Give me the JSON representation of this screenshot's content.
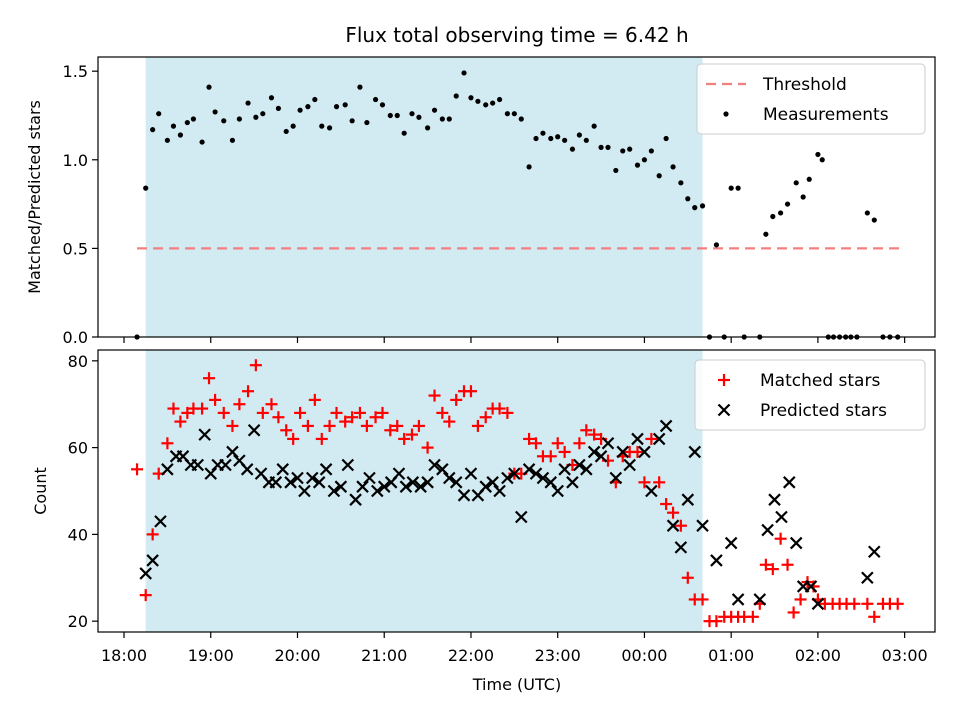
{
  "title": "Flux total observing time = 6.42 h",
  "xlabel": "Time (UTC)",
  "x_ticks": [
    "18:00",
    "19:00",
    "20:00",
    "21:00",
    "22:00",
    "23:00",
    "00:00",
    "01:00",
    "02:00",
    "03:00"
  ],
  "chart_data": [
    {
      "type": "scatter",
      "ylabel": "Matched/Predicted stars",
      "xlim": [
        17.7,
        27.35
      ],
      "ylim": [
        0,
        1.58
      ],
      "y_ticks": [
        "0.0",
        "0.5",
        "1.0",
        "1.5"
      ],
      "shaded_region": {
        "x_start": 18.25,
        "x_end": 24.67,
        "color": "#add8e6"
      },
      "threshold": {
        "name": "Threshold",
        "value": 0.5,
        "x_start": 18.15,
        "x_end": 27.0,
        "color": "#f08080"
      },
      "legend": [
        "Threshold",
        "Measurements"
      ],
      "legend_position": "upper right",
      "series": [
        {
          "name": "Measurements",
          "color": "#000000",
          "x": [
            18.15,
            18.25,
            18.33,
            18.4,
            18.5,
            18.57,
            18.65,
            18.73,
            18.8,
            18.9,
            18.98,
            19.05,
            19.15,
            19.25,
            19.33,
            19.43,
            19.52,
            19.6,
            19.7,
            19.78,
            19.87,
            19.95,
            20.03,
            20.12,
            20.2,
            20.28,
            20.37,
            20.45,
            20.55,
            20.63,
            20.72,
            20.8,
            20.9,
            20.98,
            21.07,
            21.15,
            21.23,
            21.32,
            21.4,
            21.5,
            21.58,
            21.67,
            21.75,
            21.83,
            21.92,
            22.0,
            22.08,
            22.17,
            22.25,
            22.33,
            22.42,
            22.5,
            22.58,
            22.67,
            22.75,
            22.83,
            22.92,
            23.0,
            23.08,
            23.17,
            23.25,
            23.33,
            23.42,
            23.5,
            23.58,
            23.67,
            23.75,
            23.83,
            23.92,
            24.0,
            24.08,
            24.17,
            24.25,
            24.33,
            24.42,
            24.5,
            24.58,
            24.67,
            24.75,
            24.83,
            24.92,
            25.0,
            25.08,
            25.15,
            25.33,
            25.4,
            25.48,
            25.57,
            25.65,
            25.75,
            25.83,
            25.9,
            26.0,
            26.05,
            26.12,
            26.18,
            26.25,
            26.32,
            26.38,
            26.45,
            26.57,
            26.65,
            26.75,
            26.83,
            26.92
          ],
          "y": [
            0.0,
            0.84,
            1.17,
            1.26,
            1.11,
            1.19,
            1.14,
            1.21,
            1.23,
            1.1,
            1.41,
            1.27,
            1.22,
            1.11,
            1.23,
            1.32,
            1.24,
            1.26,
            1.35,
            1.29,
            1.16,
            1.19,
            1.28,
            1.3,
            1.34,
            1.19,
            1.18,
            1.3,
            1.31,
            1.22,
            1.41,
            1.21,
            1.34,
            1.31,
            1.25,
            1.25,
            1.15,
            1.26,
            1.24,
            1.18,
            1.28,
            1.23,
            1.23,
            1.36,
            1.49,
            1.35,
            1.33,
            1.31,
            1.32,
            1.34,
            1.26,
            1.26,
            1.23,
            0.96,
            1.12,
            1.15,
            1.12,
            1.13,
            1.11,
            1.06,
            1.14,
            1.11,
            1.19,
            1.07,
            1.07,
            0.94,
            1.05,
            1.06,
            0.97,
            1.0,
            1.05,
            0.91,
            1.12,
            0.96,
            0.87,
            0.78,
            0.73,
            0.74,
            0.0,
            0.52,
            0.0,
            0.84,
            0.84,
            0.0,
            0.0,
            0.58,
            0.68,
            0.7,
            0.75,
            0.87,
            0.79,
            0.89,
            1.03,
            1.0,
            0.0,
            0.0,
            0.0,
            0.0,
            0.0,
            0.0,
            0.7,
            0.66,
            0.0,
            0.0,
            0.0
          ]
        }
      ]
    },
    {
      "type": "scatter",
      "ylabel": "Count",
      "xlim": [
        17.7,
        27.35
      ],
      "ylim": [
        17.5,
        82.5
      ],
      "y_ticks": [
        "20",
        "40",
        "60",
        "80"
      ],
      "shaded_region": {
        "x_start": 18.25,
        "x_end": 24.67,
        "color": "#add8e6"
      },
      "legend": [
        "Matched stars",
        "Predicted stars"
      ],
      "legend_position": "upper right",
      "series": [
        {
          "name": "Matched stars",
          "marker": "plus",
          "color": "#ff0000",
          "x": [
            18.15,
            18.25,
            18.33,
            18.4,
            18.5,
            18.57,
            18.65,
            18.73,
            18.8,
            18.9,
            18.98,
            19.05,
            19.15,
            19.25,
            19.33,
            19.43,
            19.52,
            19.6,
            19.7,
            19.78,
            19.87,
            19.95,
            20.03,
            20.12,
            20.2,
            20.28,
            20.37,
            20.45,
            20.55,
            20.63,
            20.72,
            20.8,
            20.9,
            20.98,
            21.07,
            21.15,
            21.23,
            21.32,
            21.4,
            21.5,
            21.58,
            21.67,
            21.75,
            21.83,
            21.92,
            22.0,
            22.08,
            22.17,
            22.25,
            22.33,
            22.42,
            22.5,
            22.58,
            22.67,
            22.75,
            22.83,
            22.92,
            23.0,
            23.08,
            23.17,
            23.25,
            23.33,
            23.42,
            23.5,
            23.58,
            23.67,
            23.75,
            23.83,
            23.92,
            24.0,
            24.08,
            24.17,
            24.25,
            24.33,
            24.42,
            24.5,
            24.58,
            24.67,
            24.75,
            24.83,
            24.92,
            25.0,
            25.08,
            25.15,
            25.25,
            25.33,
            25.4,
            25.48,
            25.57,
            25.65,
            25.72,
            25.8,
            25.88,
            25.95,
            26.0,
            26.08,
            26.17,
            26.25,
            26.33,
            26.42,
            26.57,
            26.65,
            26.75,
            26.83,
            26.92
          ],
          "y": [
            55,
            26,
            40,
            54,
            61,
            69,
            66,
            68,
            69,
            69,
            76,
            71,
            68,
            65,
            70,
            73,
            79,
            68,
            70,
            67,
            64,
            62,
            68,
            65,
            71,
            62,
            65,
            68,
            66,
            67,
            68,
            65,
            67,
            68,
            64,
            65,
            62,
            63,
            65,
            60,
            72,
            68,
            66,
            71,
            73,
            73,
            65,
            67,
            69,
            69,
            68,
            54,
            54,
            62,
            61,
            58,
            58,
            61,
            59,
            56,
            61,
            64,
            63,
            62,
            57,
            52,
            58,
            59,
            59,
            52,
            62,
            52,
            47,
            45,
            42,
            30,
            25,
            25,
            20,
            20,
            21,
            21,
            21,
            21,
            21,
            24,
            33,
            32,
            39,
            33,
            22,
            25,
            29,
            28,
            25,
            24,
            24,
            24,
            24,
            24,
            24,
            21,
            24,
            24,
            24
          ]
        },
        {
          "name": "Predicted stars",
          "marker": "x",
          "color": "#000000",
          "x": [
            18.25,
            18.33,
            18.42,
            18.5,
            18.6,
            18.68,
            18.77,
            18.85,
            18.93,
            19.0,
            19.08,
            19.17,
            19.25,
            19.33,
            19.42,
            19.5,
            19.58,
            19.67,
            19.75,
            19.83,
            19.92,
            20.0,
            20.08,
            20.17,
            20.25,
            20.33,
            20.42,
            20.5,
            20.58,
            20.67,
            20.75,
            20.83,
            20.92,
            21.0,
            21.08,
            21.17,
            21.25,
            21.33,
            21.42,
            21.5,
            21.58,
            21.67,
            21.75,
            21.83,
            21.92,
            22.0,
            22.08,
            22.17,
            22.25,
            22.33,
            22.42,
            22.5,
            22.58,
            22.67,
            22.75,
            22.83,
            22.92,
            23.0,
            23.08,
            23.17,
            23.25,
            23.33,
            23.42,
            23.5,
            23.58,
            23.67,
            23.75,
            23.83,
            23.92,
            24.0,
            24.08,
            24.17,
            24.25,
            24.33,
            24.42,
            24.5,
            24.58,
            24.67,
            24.83,
            25.0,
            25.08,
            25.33,
            25.42,
            25.5,
            25.58,
            25.67,
            25.75,
            25.83,
            25.92,
            26.0,
            26.57,
            26.65
          ],
          "y": [
            31,
            34,
            43,
            55,
            58,
            58,
            56,
            56,
            63,
            54,
            56,
            56,
            59,
            57,
            55,
            64,
            54,
            52,
            52,
            55,
            52,
            53,
            50,
            53,
            52,
            55,
            50,
            51,
            56,
            48,
            51,
            53,
            50,
            51,
            52,
            54,
            51,
            52,
            51,
            52,
            56,
            55,
            53,
            52,
            49,
            54,
            49,
            51,
            52,
            50,
            53,
            54,
            44,
            55,
            54,
            53,
            52,
            50,
            55,
            52,
            56,
            55,
            59,
            58,
            61,
            53,
            59,
            56,
            62,
            59,
            50,
            62,
            65,
            42,
            37,
            48,
            59,
            42,
            34,
            38,
            25,
            25,
            41,
            48,
            44,
            52,
            38,
            28,
            28,
            24,
            30,
            36
          ]
        }
      ]
    }
  ]
}
